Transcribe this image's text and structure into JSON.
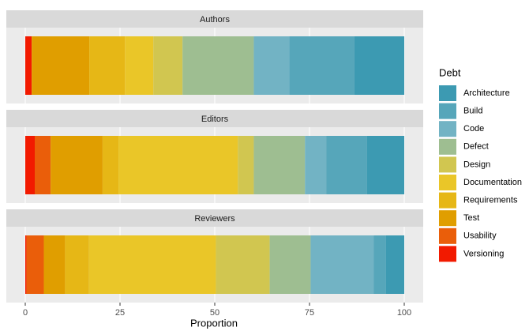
{
  "chart_data": {
    "type": "stacked-bar-facets",
    "categories": [
      "Authors",
      "Editors",
      "Reviewers"
    ],
    "x_label": "Proportion",
    "legend_title": "Debt",
    "legend": "right",
    "xlim": [
      -5,
      105
    ],
    "xticks": [
      0,
      25,
      50,
      75,
      100
    ],
    "grid": true,
    "series": [
      {
        "name": "Architecture",
        "color": "#3C9AB2",
        "values": [
          13.2,
          9.8,
          4.8
        ]
      },
      {
        "name": "Build",
        "color": "#56A6BA",
        "values": [
          17.1,
          10.8,
          3.3
        ]
      },
      {
        "name": "Code",
        "color": "#72B3C4",
        "values": [
          9.4,
          5.6,
          16.6
        ]
      },
      {
        "name": "Defect",
        "color": "#9EBE91",
        "values": [
          18.8,
          13.5,
          10.8
        ]
      },
      {
        "name": "Design",
        "color": "#D1C650",
        "values": [
          7.7,
          4.2,
          14.2
        ]
      },
      {
        "name": "Documentation",
        "color": "#EAC628",
        "values": [
          7.5,
          31.5,
          33.5
        ]
      },
      {
        "name": "Requirements",
        "color": "#E6B716",
        "values": [
          9.4,
          4.2,
          6.3
        ]
      },
      {
        "name": "Test",
        "color": "#E09E00",
        "values": [
          15.2,
          13.7,
          5.6
        ]
      },
      {
        "name": "Usability",
        "color": "#EA5E0A",
        "values": [
          0,
          4.2,
          4.6
        ]
      },
      {
        "name": "Versioning",
        "color": "#F21A00",
        "values": [
          1.7,
          2.5,
          0.3
        ]
      }
    ]
  }
}
